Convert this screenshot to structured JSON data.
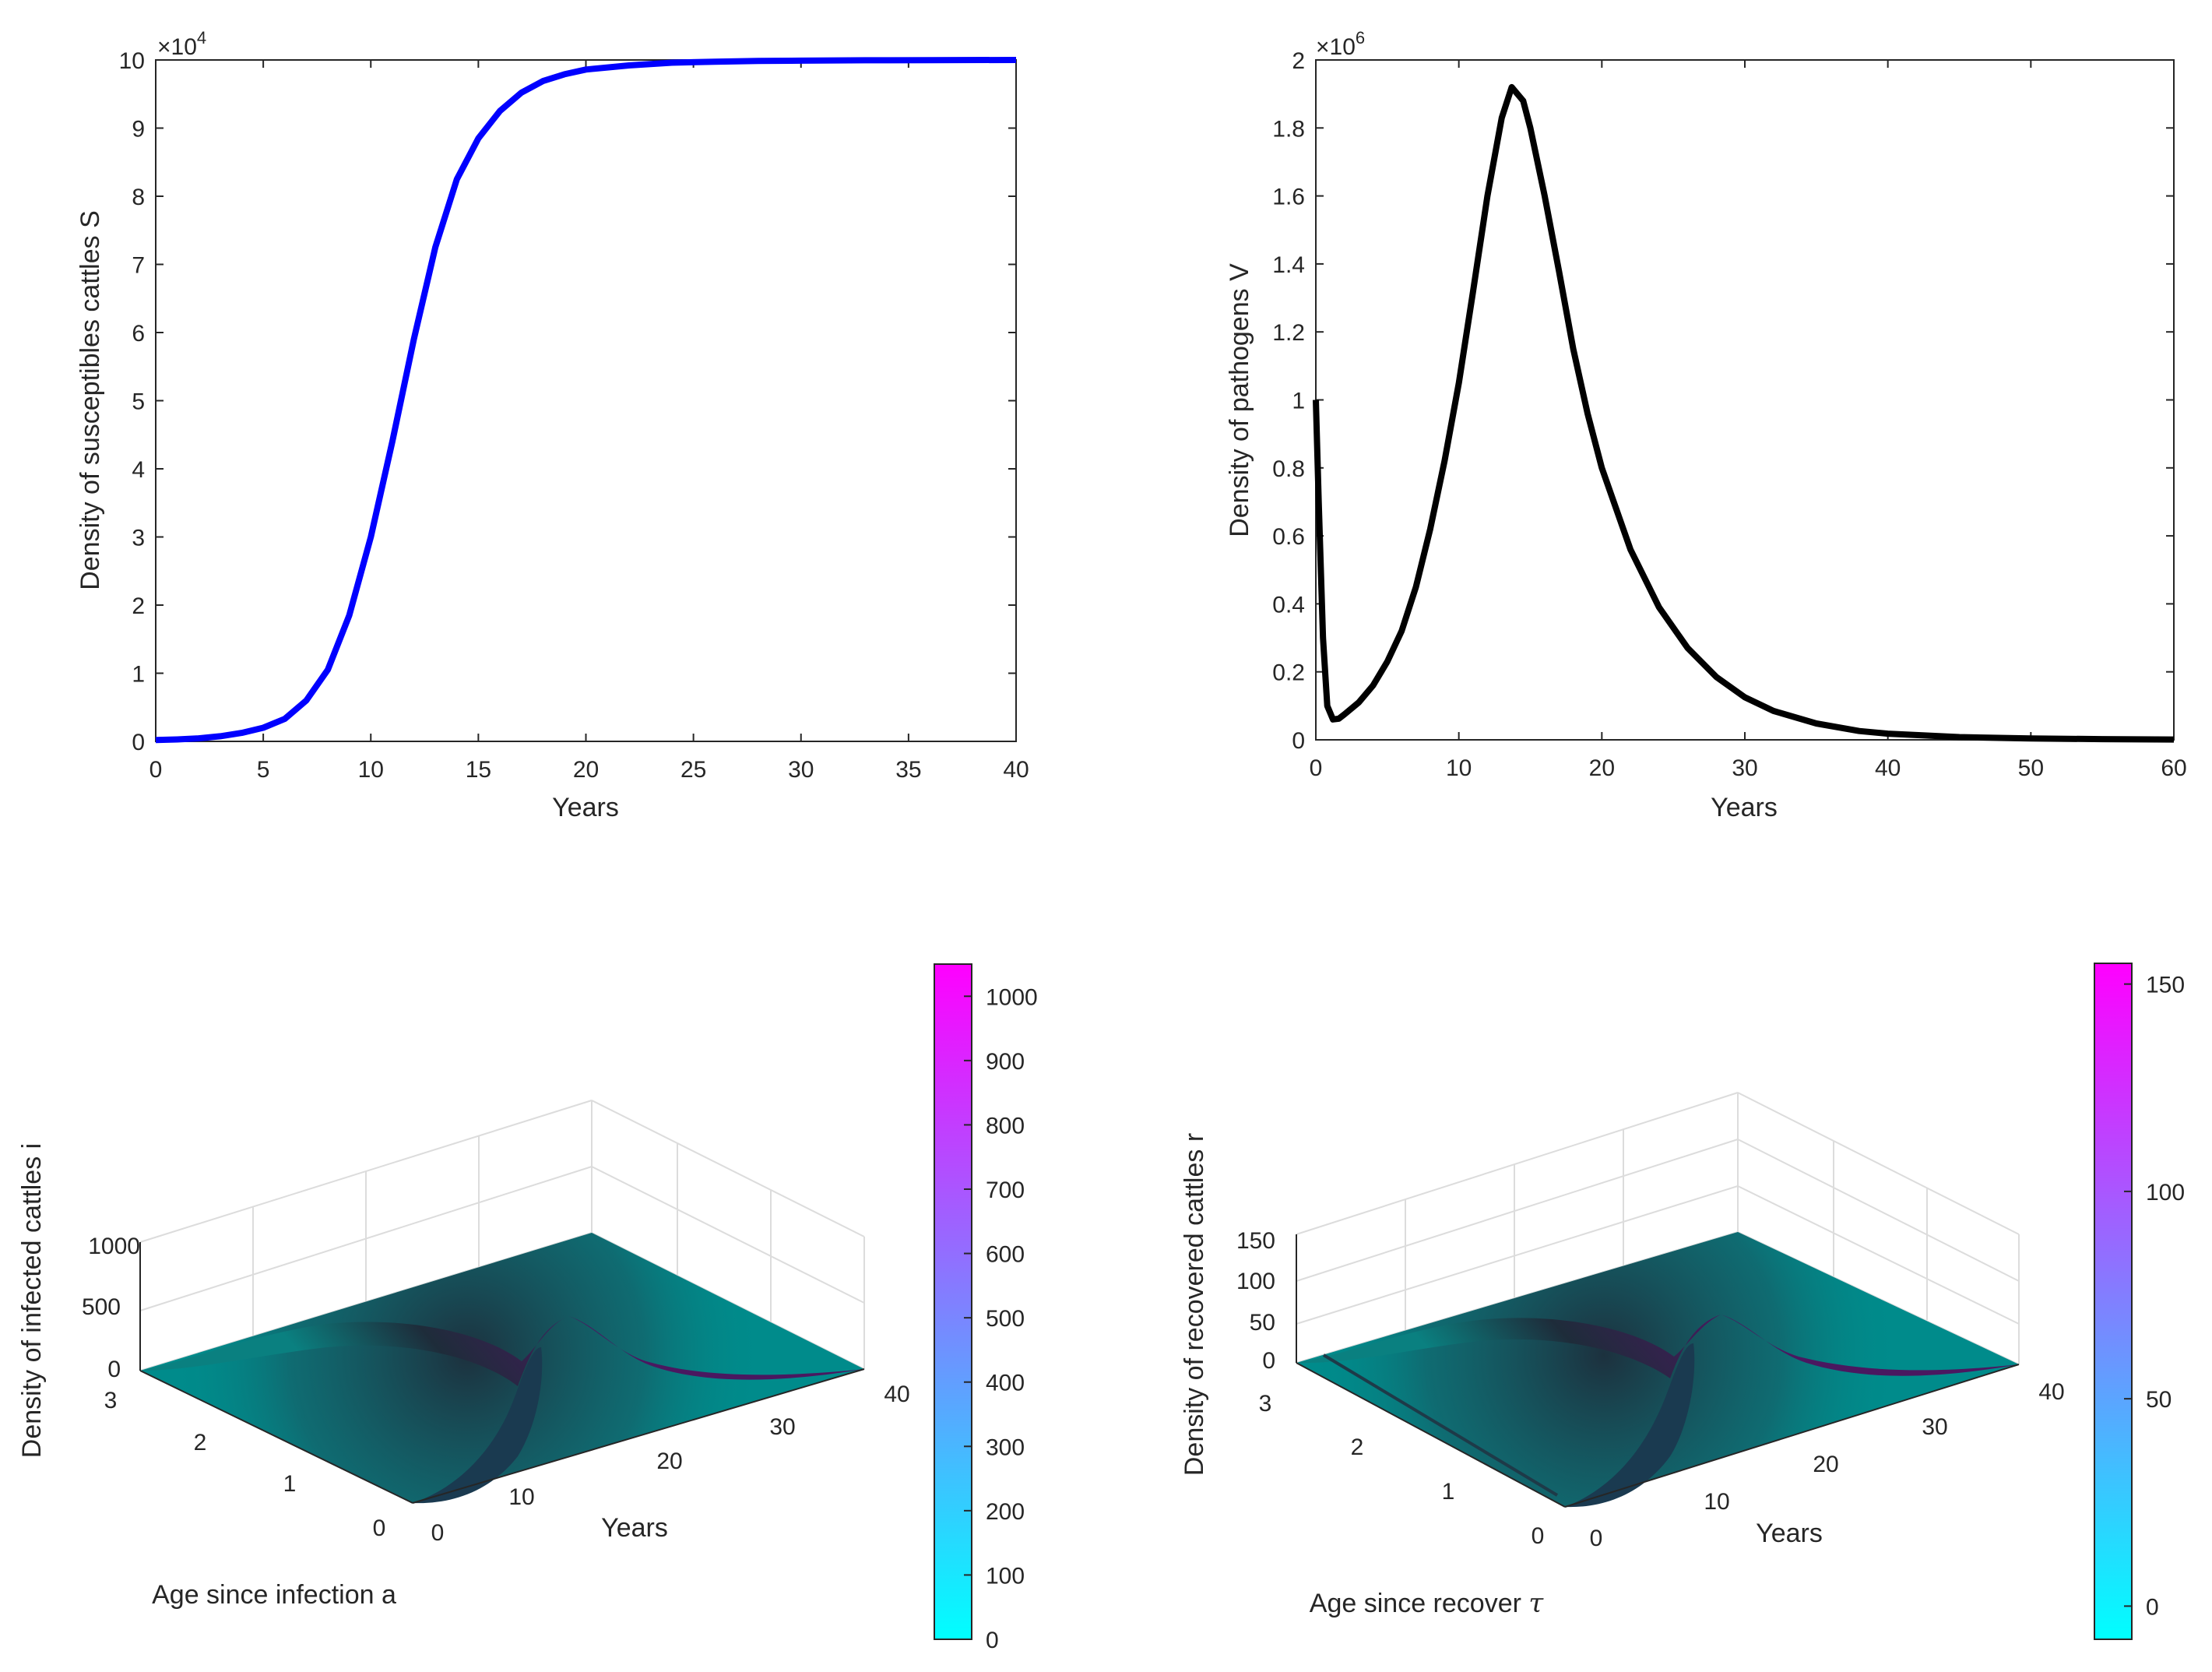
{
  "chart_data": [
    {
      "type": "line",
      "title": "",
      "xlabel": "Years",
      "ylabel": "Density of susceptibles cattles S",
      "xlim": [
        0,
        40
      ],
      "ylim": [
        0,
        100000
      ],
      "xticks": [
        0,
        5,
        10,
        15,
        20,
        25,
        30,
        35,
        40
      ],
      "xtick_labels": [
        "0",
        "5",
        "10",
        "15",
        "20",
        "25",
        "30",
        "35",
        "40"
      ],
      "yticks": [
        0,
        10000,
        20000,
        30000,
        40000,
        50000,
        60000,
        70000,
        80000,
        90000,
        100000
      ],
      "ytick_labels": [
        "0",
        "1",
        "2",
        "3",
        "4",
        "5",
        "6",
        "7",
        "8",
        "9",
        "10"
      ],
      "exponent_label": "×10",
      "exponent_power": "4",
      "color": "#0000ff",
      "series": [
        {
          "name": "S",
          "x": [
            0,
            1,
            2,
            3,
            4,
            5,
            6,
            7,
            8,
            9,
            10,
            11,
            12,
            13,
            14,
            15,
            16,
            17,
            18,
            19,
            20,
            22,
            24,
            26,
            28,
            30,
            33,
            36,
            40
          ],
          "y": [
            200,
            280,
            450,
            750,
            1250,
            2000,
            3300,
            6000,
            10500,
            18500,
            30000,
            44000,
            59000,
            72500,
            82500,
            88500,
            92500,
            95200,
            96900,
            97900,
            98600,
            99200,
            99600,
            99750,
            99850,
            99900,
            99950,
            99980,
            100000
          ]
        }
      ]
    },
    {
      "type": "line",
      "title": "",
      "xlabel": "Years",
      "ylabel": "Density of pathogens V",
      "xlim": [
        0,
        60
      ],
      "ylim": [
        0,
        2000000
      ],
      "xticks": [
        0,
        10,
        20,
        30,
        40,
        50,
        60
      ],
      "xtick_labels": [
        "0",
        "10",
        "20",
        "30",
        "40",
        "50",
        "60"
      ],
      "yticks": [
        0,
        200000,
        400000,
        600000,
        800000,
        1000000,
        1200000,
        1400000,
        1600000,
        1800000,
        2000000
      ],
      "ytick_labels": [
        "0",
        "0.2",
        "0.4",
        "0.6",
        "0.8",
        "1",
        "1.2",
        "1.4",
        "1.6",
        "1.8",
        "2"
      ],
      "exponent_label": "×10",
      "exponent_power": "6",
      "color": "#000000",
      "series": [
        {
          "name": "V",
          "x": [
            0,
            0.2,
            0.5,
            0.8,
            1.2,
            1.6,
            2,
            3,
            4,
            5,
            6,
            7,
            8,
            9,
            10,
            11,
            12,
            13,
            13.7,
            14.5,
            15,
            16,
            17,
            18,
            19,
            20,
            22,
            24,
            26,
            28,
            30,
            32,
            35,
            38,
            40,
            45,
            50,
            55,
            60
          ],
          "y": [
            1000000,
            700000,
            300000,
            100000,
            60000,
            62000,
            75000,
            110000,
            160000,
            230000,
            320000,
            450000,
            620000,
            820000,
            1050000,
            1320000,
            1600000,
            1830000,
            1920000,
            1880000,
            1800000,
            1600000,
            1380000,
            1150000,
            960000,
            800000,
            560000,
            390000,
            270000,
            185000,
            125000,
            85000,
            48000,
            26000,
            18000,
            8000,
            4000,
            2000,
            1000
          ]
        }
      ]
    },
    {
      "type": "surface",
      "title": "",
      "xlabel": "Years",
      "ylabel": "Age since infection a",
      "zlabel": "Density of infected cattles i",
      "xlim": [
        0,
        40
      ],
      "ylim": [
        0,
        3
      ],
      "zlim": [
        0,
        1000
      ],
      "xtick_labels": [
        "0",
        "10",
        "20",
        "30",
        "40"
      ],
      "ytick_labels": [
        "0",
        "1",
        "2",
        "3"
      ],
      "ztick_labels": [
        "0",
        "500",
        "1000"
      ],
      "colorbar_ticks": [
        "0",
        "100",
        "200",
        "300",
        "400",
        "500",
        "600",
        "700",
        "800",
        "900",
        "1000"
      ],
      "colorbar_range": [
        0,
        1050
      ],
      "peak": {
        "years": 13,
        "age": 0,
        "value": 1000
      }
    },
    {
      "type": "surface",
      "title": "",
      "xlabel": "Years",
      "ylabel": "Age since recover τ",
      "ylabel_main": "Age since recover ",
      "ylabel_symbol": "τ",
      "zlabel": "Density of recovered cattles r",
      "xlim": [
        0,
        40
      ],
      "ylim": [
        0,
        3
      ],
      "zlim": [
        0,
        150
      ],
      "xtick_labels": [
        "0",
        "10",
        "20",
        "30",
        "40"
      ],
      "ytick_labels": [
        "0",
        "1",
        "2",
        "3"
      ],
      "ztick_labels": [
        "0",
        "50",
        "100",
        "150"
      ],
      "colorbar_ticks": [
        "0",
        "50",
        "100",
        "150"
      ],
      "colorbar_range": [
        -8,
        155
      ],
      "peak": {
        "years": 15,
        "age": 0,
        "value": 150
      }
    }
  ]
}
